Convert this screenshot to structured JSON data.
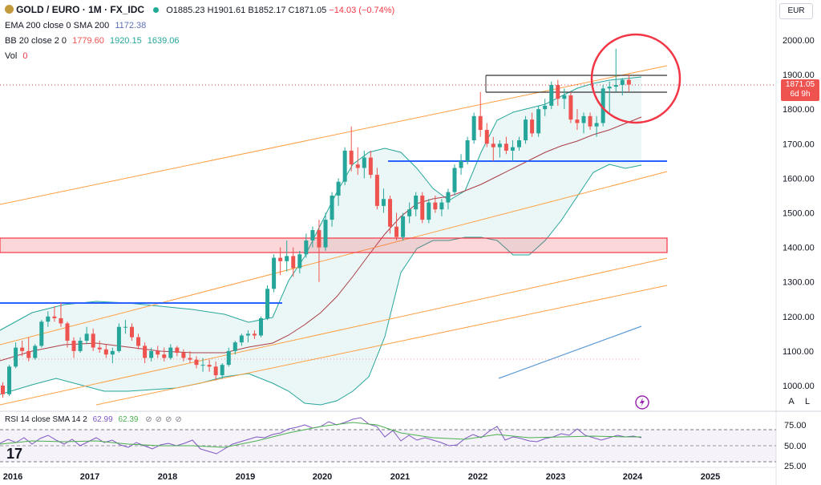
{
  "legend": {
    "symbol": "GOLD / EURO · 1M · FX_IDC",
    "ohlc": "O1885.23 H1901.61 B1852.17 C1871.05",
    "change": "−14.03 (−0.74%)",
    "ema_label": "EMA 200 close 0 SMA 200",
    "ema_value": "1172.38",
    "bb_label": "BB 20 close 2 0",
    "bb_basis": "1779.60",
    "bb_upper": "1920.15",
    "bb_lower": "1639.06",
    "vol_label": "Vol",
    "vol_value": "0"
  },
  "price_axis": {
    "currency": "EUR",
    "ticks": [
      "2000.00",
      "1900.00",
      "1800.00",
      "1700.00",
      "1600.00",
      "1500.00",
      "1400.00",
      "1300.00",
      "1200.00",
      "1100.00",
      "1000.00"
    ],
    "last_price": "1871.05",
    "countdown": "6d 9h",
    "btn_a": "A",
    "btn_l": "L"
  },
  "time_axis": {
    "ticks": [
      "2016",
      "2017",
      "2018",
      "2019",
      "2020",
      "2021",
      "2022",
      "2023",
      "2024",
      "2025"
    ]
  },
  "rsi": {
    "label": "RSI 14 close SMA 14 2",
    "value1": "62.99",
    "value2": "62.39",
    "ticks": [
      "75.00",
      "50.00",
      "25.00"
    ]
  },
  "logo": "17",
  "colors": {
    "up": "#26a69a",
    "down": "#ef5350",
    "bb_band": "#26a69a",
    "bb_basis": "#ac3d47",
    "channel": "#ff9f43",
    "support": "#2962ff",
    "rsi_line": "#7e57c2",
    "rsi_sma": "#4caf50",
    "highlight": "#f23645"
  },
  "chart_data": {
    "type": "candlestick",
    "ylim": [
      970,
      2060
    ],
    "y_ticks": [
      2000,
      1900,
      1800,
      1700,
      1600,
      1500,
      1400,
      1300,
      1200,
      1100,
      1000
    ],
    "x_ticks": [
      "2016",
      "2017",
      "2018",
      "2019",
      "2020",
      "2021",
      "2022",
      "2023",
      "2024",
      "2025"
    ],
    "last_close": 1871.05,
    "bollinger": {
      "basis": 1779.6,
      "upper": 1920.15,
      "lower": 1639.06
    },
    "ema200": 1172.38,
    "resistance_zone": [
      1385,
      1430
    ],
    "rsi": {
      "ylim": [
        25,
        75
      ],
      "ticks": [
        75,
        50,
        25
      ],
      "value": 62.99,
      "sma": 62.39
    }
  }
}
